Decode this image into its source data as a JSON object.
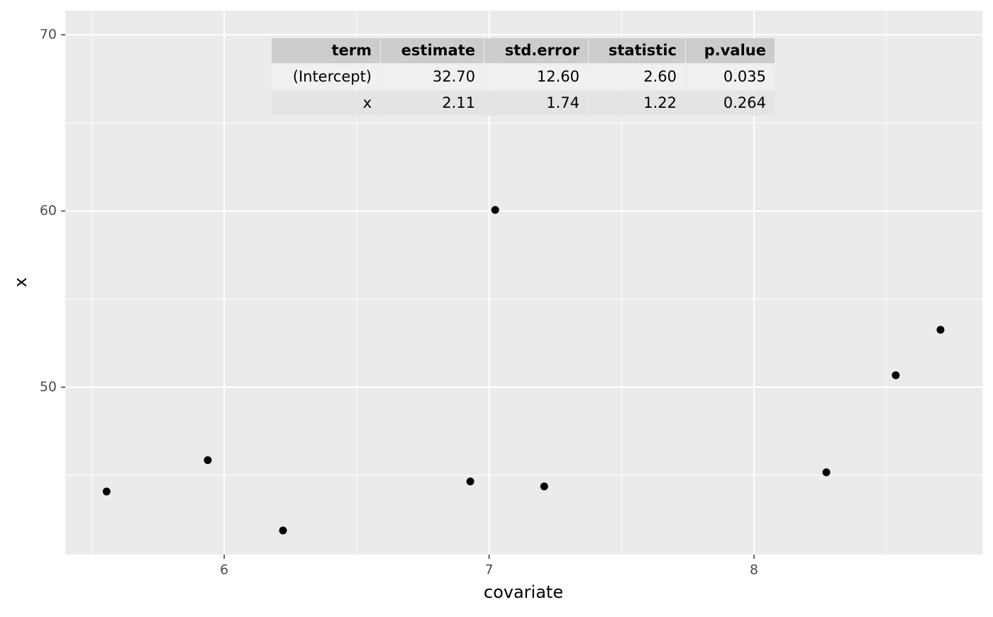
{
  "chart_data": {
    "type": "scatter",
    "x_label": "covariate",
    "y_label": "x",
    "x": [
      5.556,
      5.938,
      6.222,
      6.929,
      7.023,
      7.208,
      8.273,
      8.535,
      8.704
    ],
    "values": [
      44.08,
      45.86,
      41.87,
      44.65,
      60.06,
      44.37,
      45.17,
      50.68,
      53.26
    ],
    "color": "#000000",
    "xlim": [
      5.4,
      8.862
    ],
    "ylim": [
      40.5,
      71.37
    ],
    "xticks": [
      6,
      7,
      8
    ],
    "yticks": [
      50,
      60,
      70
    ],
    "xminor": [
      5.5,
      6.5,
      7.5,
      8.5
    ],
    "yminor": [
      45,
      55,
      65
    ],
    "grid": true,
    "table": {
      "columns": [
        "term",
        "estimate",
        "std.error",
        "statistic",
        "p.value"
      ],
      "rows": [
        [
          "(Intercept)",
          "32.70",
          "12.60",
          "2.60",
          "0.035"
        ],
        [
          "x",
          "2.11",
          "1.74",
          "1.22",
          "0.264"
        ]
      ]
    }
  }
}
